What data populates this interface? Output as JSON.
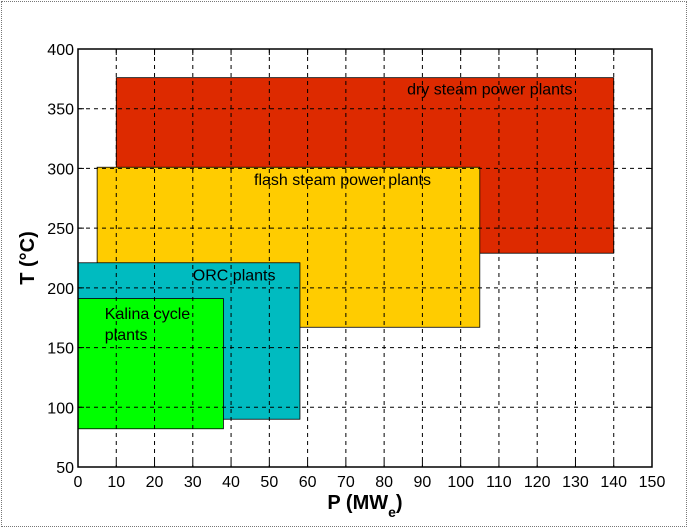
{
  "chart_data": {
    "type": "area",
    "title": "",
    "xlabel": "P  (MW",
    "xlabel_sub": "e",
    "xlabel_close": ")",
    "ylabel": "T  (°C)",
    "xlim": [
      0,
      150
    ],
    "ylim": [
      50,
      400
    ],
    "xticks": [
      0,
      10,
      20,
      30,
      40,
      50,
      60,
      70,
      80,
      90,
      100,
      110,
      120,
      130,
      140,
      150
    ],
    "yticks": [
      50,
      100,
      150,
      200,
      250,
      300,
      350,
      400
    ],
    "grid": true,
    "regions": [
      {
        "name": "dry steam power plants",
        "x": [
          10,
          140
        ],
        "y": [
          229,
          376
        ],
        "color": "#dd2a00",
        "label_lines": [
          "dry steam power plants"
        ],
        "label_at": [
          86,
          362
        ]
      },
      {
        "name": "flash steam power plants",
        "x": [
          5,
          105
        ],
        "y": [
          167,
          301
        ],
        "color": "#ffcc00",
        "label_lines": [
          "flash steam power plants"
        ],
        "label_at": [
          46,
          286
        ]
      },
      {
        "name": "ORC plants",
        "x": [
          0,
          58
        ],
        "y": [
          90,
          221
        ],
        "color": "#00bbc0",
        "label_lines": [
          "ORC plants"
        ],
        "label_at": [
          30,
          206
        ]
      },
      {
        "name": "Kalina cycle plants",
        "x": [
          0,
          38
        ],
        "y": [
          82,
          191
        ],
        "color": "#00ff00",
        "label_lines": [
          "Kalina cycle",
          "plants"
        ],
        "label_at": [
          7,
          174
        ]
      }
    ]
  }
}
